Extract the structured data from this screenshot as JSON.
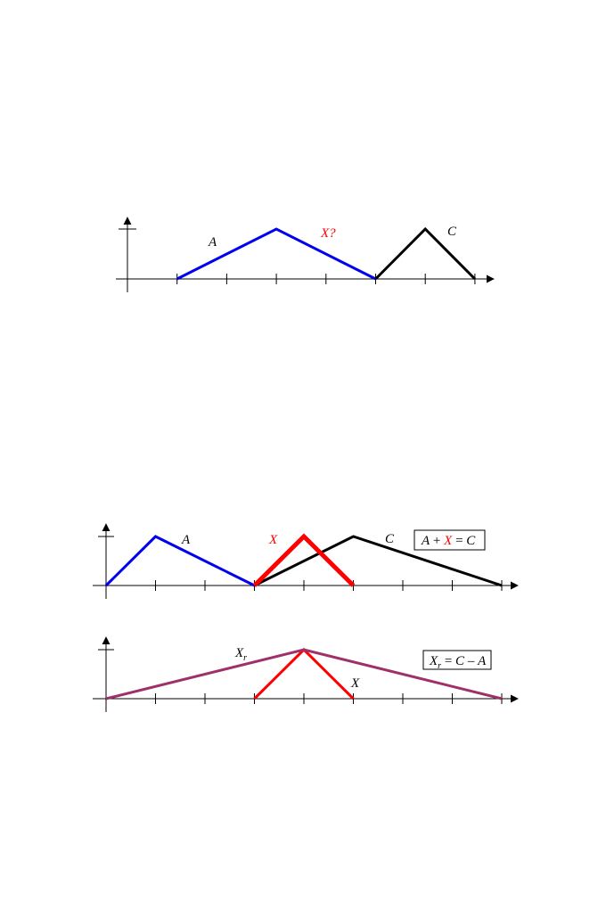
{
  "colors": {
    "A": "#0000ee",
    "X": "#ff0000",
    "C": "#000000",
    "Xr": "#a0306a",
    "axis": "#000000"
  },
  "panel1": {
    "label_A": "A",
    "label_X": "X?",
    "label_C": "C",
    "series": {
      "A": [
        [
          1,
          0
        ],
        [
          3,
          1
        ],
        [
          5,
          0
        ]
      ],
      "C": [
        [
          5,
          0
        ],
        [
          6,
          1
        ],
        [
          7,
          0
        ]
      ]
    }
  },
  "panel2": {
    "label_A": "A",
    "label_X": "X",
    "label_C": "C",
    "equation": {
      "A": "A",
      "plus": " + ",
      "X": "X",
      "eq": " = ",
      "C": "C"
    },
    "series": {
      "A": [
        [
          0,
          0
        ],
        [
          1,
          1
        ],
        [
          3,
          0
        ]
      ],
      "X": [
        [
          3,
          0
        ],
        [
          4,
          1
        ],
        [
          5,
          0
        ]
      ],
      "C": [
        [
          3,
          0
        ],
        [
          5,
          1
        ],
        [
          8,
          0
        ]
      ]
    }
  },
  "panel3": {
    "label_Xr": "X",
    "label_Xr_sub": "r",
    "label_X": "X",
    "equation": {
      "X": "X",
      "sub": "r",
      "eq": " = ",
      "C": "C",
      "minus": " – ",
      "A": "A"
    },
    "series": {
      "Xr": [
        [
          0,
          0
        ],
        [
          4,
          1
        ],
        [
          8,
          0
        ]
      ],
      "X": [
        [
          3,
          0
        ],
        [
          4,
          1
        ],
        [
          5,
          0
        ]
      ]
    }
  }
}
